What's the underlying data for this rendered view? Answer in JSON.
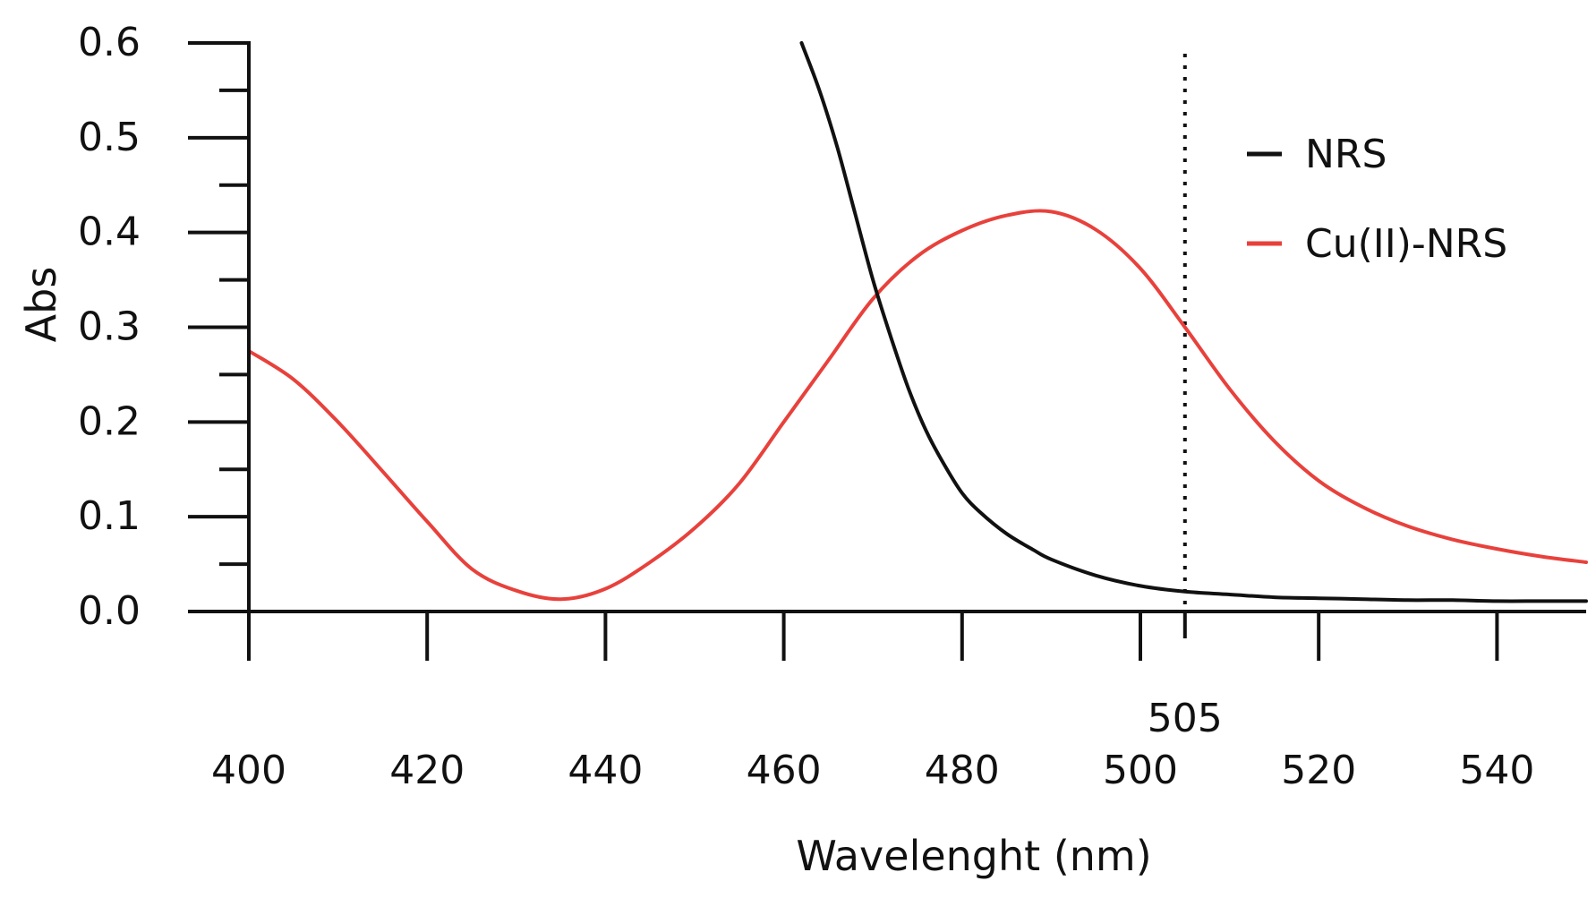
{
  "chart_data": {
    "type": "line",
    "title": "",
    "xlabel": "Wavelenght (nm)",
    "ylabel": "Abs",
    "xlim": [
      400,
      550
    ],
    "ylim": [
      0,
      0.6
    ],
    "x_ticks": [
      400,
      420,
      440,
      460,
      480,
      500,
      520,
      540
    ],
    "x_tick_labels": [
      "400",
      "420",
      "440",
      "460",
      "480",
      "500",
      "520",
      "540"
    ],
    "y_ticks": [
      0,
      0.1,
      0.2,
      0.3,
      0.4,
      0.5,
      0.6
    ],
    "y_tick_labels": [
      "0.0",
      "0.1",
      "0.2",
      "0.3",
      "0.4",
      "0.5",
      "0.6"
    ],
    "y_minor_step": 0.05,
    "grid": false,
    "legend_position": "top-right",
    "annotation": {
      "x": 505,
      "label": "505",
      "style": "dotted vertical line"
    },
    "series": [
      {
        "name": "NRS",
        "color": "#111111",
        "x": [
          462,
          464,
          466,
          468,
          470,
          472,
          474,
          476,
          478,
          480,
          482,
          485,
          488,
          490,
          495,
          500,
          505,
          510,
          515,
          520,
          525,
          530,
          535,
          540,
          545,
          550
        ],
        "y": [
          0.6,
          0.55,
          0.49,
          0.42,
          0.35,
          0.29,
          0.235,
          0.19,
          0.155,
          0.125,
          0.105,
          0.082,
          0.065,
          0.055,
          0.038,
          0.027,
          0.021,
          0.018,
          0.015,
          0.014,
          0.013,
          0.012,
          0.012,
          0.011,
          0.011,
          0.011
        ]
      },
      {
        "name": "Cu(II)-NRS",
        "color": "#e8413c",
        "x": [
          400,
          405,
          410,
          415,
          420,
          425,
          430,
          435,
          440,
          445,
          450,
          455,
          460,
          465,
          470,
          475,
          480,
          485,
          490,
          495,
          500,
          505,
          510,
          515,
          520,
          525,
          530,
          535,
          540,
          545,
          550
        ],
        "y": [
          0.275,
          0.245,
          0.2,
          0.148,
          0.095,
          0.045,
          0.022,
          0.013,
          0.024,
          0.052,
          0.088,
          0.135,
          0.2,
          0.265,
          0.33,
          0.375,
          0.402,
          0.418,
          0.422,
          0.403,
          0.362,
          0.3,
          0.235,
          0.18,
          0.138,
          0.11,
          0.09,
          0.076,
          0.066,
          0.058,
          0.052
        ]
      }
    ]
  }
}
